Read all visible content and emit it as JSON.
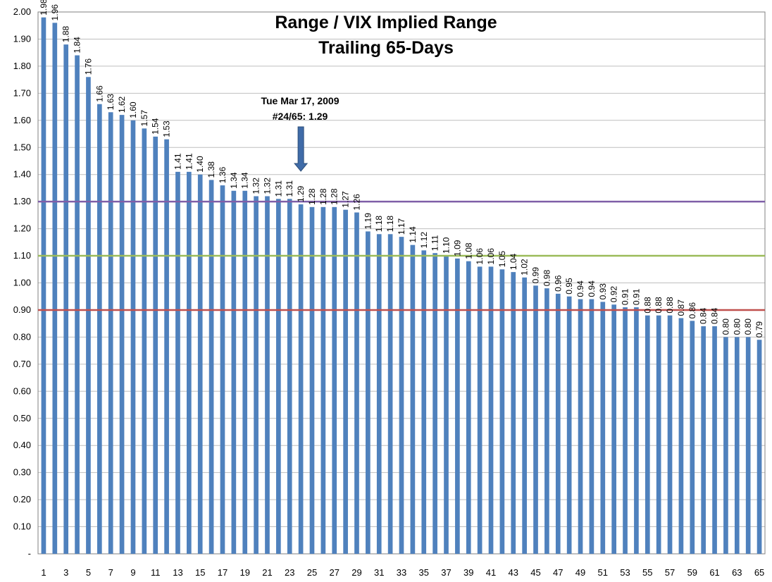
{
  "chart_data": {
    "type": "bar",
    "title": "Range / VIX Implied Range",
    "subtitle": "Trailing 65-Days",
    "categories": [
      1,
      2,
      3,
      4,
      5,
      6,
      7,
      8,
      9,
      10,
      11,
      12,
      13,
      14,
      15,
      16,
      17,
      18,
      19,
      20,
      21,
      22,
      23,
      24,
      25,
      26,
      27,
      28,
      29,
      30,
      31,
      32,
      33,
      34,
      35,
      36,
      37,
      38,
      39,
      40,
      41,
      42,
      43,
      44,
      45,
      46,
      47,
      48,
      49,
      50,
      51,
      52,
      53,
      54,
      55,
      56,
      57,
      58,
      59,
      60,
      61,
      62,
      63,
      64,
      65
    ],
    "values": [
      1.98,
      1.96,
      1.88,
      1.84,
      1.76,
      1.66,
      1.63,
      1.62,
      1.6,
      1.57,
      1.54,
      1.53,
      1.41,
      1.41,
      1.4,
      1.38,
      1.36,
      1.34,
      1.34,
      1.32,
      1.32,
      1.31,
      1.31,
      1.29,
      1.28,
      1.28,
      1.28,
      1.27,
      1.26,
      1.19,
      1.18,
      1.18,
      1.17,
      1.14,
      1.12,
      1.11,
      1.1,
      1.09,
      1.08,
      1.06,
      1.06,
      1.05,
      1.04,
      1.02,
      0.99,
      0.98,
      0.96,
      0.95,
      0.94,
      0.94,
      0.93,
      0.92,
      0.91,
      0.91,
      0.88,
      0.88,
      0.88,
      0.87,
      0.86,
      0.84,
      0.84,
      0.8,
      0.8,
      0.8,
      0.79
    ],
    "value_labels": [
      "1.98",
      "1.96",
      "1.88",
      "1.84",
      "1.76",
      "1.66",
      "1.63",
      "1.62",
      "1.60",
      "1.57",
      "1.54",
      "1.53",
      "1.41",
      "1.41",
      "1.40",
      "1.38",
      "1.36",
      "1.34",
      "1.34",
      "1.32",
      "1.32",
      "1.31",
      "1.31",
      "1.29",
      "1.28",
      "1.28",
      "1.28",
      "1.27",
      "1.26",
      "1.19",
      "1.18",
      "1.18",
      "1.17",
      "1.14",
      "1.12",
      "1.11",
      "1.10",
      "1.09",
      "1.08",
      "1.06",
      "1.06",
      "1.05",
      "1.04",
      "1.02",
      "0.99",
      "0.98",
      "0.96",
      "0.95",
      "0.94",
      "0.94",
      "0.93",
      "0.92",
      "0.91",
      "0.91",
      "0.88",
      "0.88",
      "0.88",
      "0.87",
      "0.86",
      "0.84",
      "0.84",
      "0.80",
      "0.80",
      "0.80",
      "0.79"
    ],
    "x_tick_labels": [
      "1",
      "3",
      "5",
      "7",
      "9",
      "11",
      "13",
      "15",
      "17",
      "19",
      "21",
      "23",
      "25",
      "27",
      "29",
      "31",
      "33",
      "35",
      "37",
      "39",
      "41",
      "43",
      "45",
      "47",
      "49",
      "51",
      "53",
      "55",
      "57",
      "59",
      "61",
      "63",
      "65"
    ],
    "y_ticks": [
      0,
      0.1,
      0.2,
      0.3,
      0.4,
      0.5,
      0.6,
      0.7,
      0.8,
      0.9,
      1.0,
      1.1,
      1.2,
      1.3,
      1.4,
      1.5,
      1.6,
      1.7,
      1.8,
      1.9,
      2.0
    ],
    "y_tick_labels": [
      "-",
      "0.10",
      "0.20",
      "0.30",
      "0.40",
      "0.50",
      "0.60",
      "0.70",
      "0.80",
      "0.90",
      "1.00",
      "1.10",
      "1.20",
      "1.30",
      "1.40",
      "1.50",
      "1.60",
      "1.70",
      "1.80",
      "1.90",
      "2.00"
    ],
    "ylim": [
      0,
      2.0
    ],
    "grid": true,
    "reference_lines": [
      {
        "value": 1.3,
        "color": "#7F5FA8"
      },
      {
        "value": 1.1,
        "color": "#9BBB59"
      },
      {
        "value": 0.9,
        "color": "#C0504D"
      }
    ],
    "annotation": {
      "line1": "Tue Mar 17, 2009",
      "line2": "#24/65: 1.29",
      "target_index": 24
    },
    "colors": {
      "bar": "#4F81BD",
      "arrow": "#3F6BA8",
      "grid": "#BFBFBF"
    }
  }
}
